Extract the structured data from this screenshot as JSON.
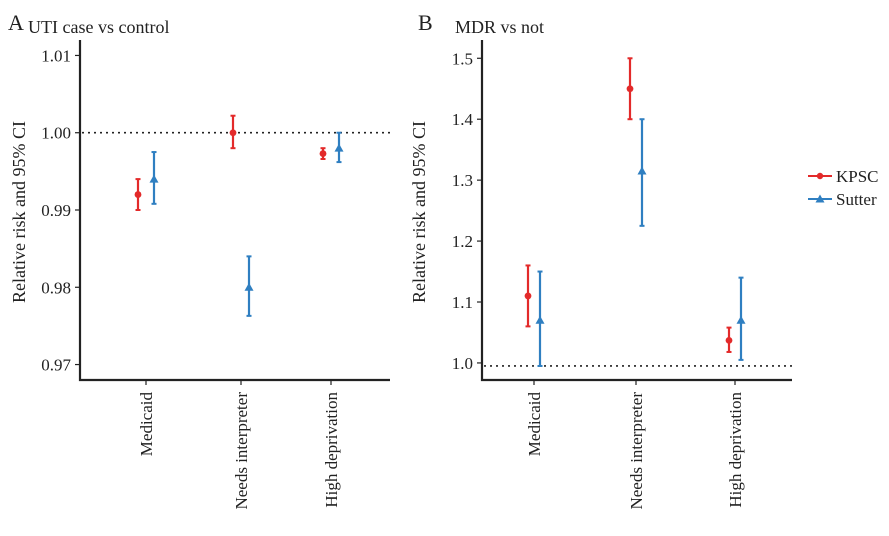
{
  "colors": {
    "KPSC": "#e32a2a",
    "Sutter": "#2f7fc1"
  },
  "legend": {
    "items": [
      {
        "name": "KPSC",
        "marker": "circle"
      },
      {
        "name": "Sutter",
        "marker": "triangle"
      }
    ],
    "placement": "right"
  },
  "chart_data": [
    {
      "type": "errorbar",
      "panel_label": "A",
      "title": "UTI case vs control",
      "ylabel": "Relative risk and 95% CI",
      "xlabel": "",
      "categories": [
        "Medicaid",
        "Needs interpreter",
        "High deprivation"
      ],
      "ylim": [
        0.968,
        1.012
      ],
      "yticks": [
        0.97,
        0.98,
        0.99,
        1.0,
        1.01
      ],
      "ytick_labels": [
        "0.97",
        "0.98",
        "0.99",
        "1.00",
        "1.01"
      ],
      "reference_line": 1.0,
      "grid": false,
      "series": [
        {
          "name": "KPSC",
          "values": [
            0.992,
            1.0,
            0.9973
          ],
          "lower": [
            0.99,
            0.998,
            0.9966
          ],
          "upper": [
            0.994,
            1.0022,
            0.998
          ]
        },
        {
          "name": "Sutter",
          "values": [
            0.994,
            0.98,
            0.998
          ],
          "lower": [
            0.9908,
            0.9763,
            0.9962
          ],
          "upper": [
            0.9975,
            0.984,
            1.0
          ]
        }
      ]
    },
    {
      "type": "errorbar",
      "panel_label": "B",
      "title": "MDR vs not",
      "ylabel": "Relative risk and 95% CI",
      "xlabel": "",
      "categories": [
        "Medicaid",
        "Needs interpreter",
        "High deprivation"
      ],
      "ylim": [
        0.972,
        1.53
      ],
      "yticks": [
        1.0,
        1.1,
        1.2,
        1.3,
        1.4,
        1.5
      ],
      "ytick_labels": [
        "1.0",
        "1.1",
        "1.2",
        "1.3",
        "1.4",
        "1.5"
      ],
      "reference_line": 0.995,
      "grid": false,
      "series": [
        {
          "name": "KPSC",
          "values": [
            1.11,
            1.45,
            1.037
          ],
          "lower": [
            1.06,
            1.4,
            1.018
          ],
          "upper": [
            1.16,
            1.5,
            1.058
          ]
        },
        {
          "name": "Sutter",
          "values": [
            1.07,
            1.315,
            1.07
          ],
          "lower": [
            0.995,
            1.225,
            1.005
          ],
          "upper": [
            1.15,
            1.4,
            1.14
          ]
        }
      ]
    }
  ]
}
